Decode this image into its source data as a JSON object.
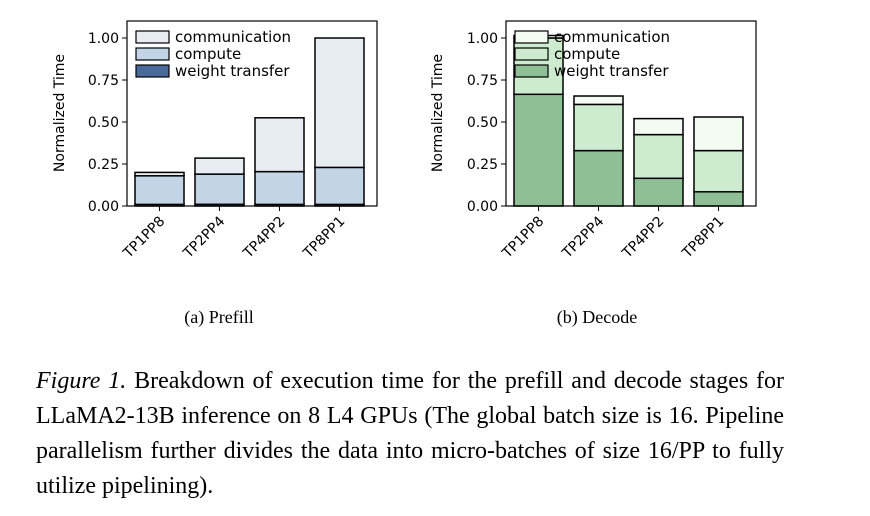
{
  "chart_data": [
    {
      "type": "bar",
      "stacked": true,
      "categories": [
        "TP1PP8",
        "TP2PP4",
        "TP4PP2",
        "TP8PP1"
      ],
      "series": [
        {
          "name": "weight transfer",
          "values": [
            0.01,
            0.01,
            0.01,
            0.01
          ],
          "color": "#4a6a9c"
        },
        {
          "name": "compute",
          "values": [
            0.17,
            0.18,
            0.195,
            0.22
          ],
          "color": "#c2d4e6"
        },
        {
          "name": "communication",
          "values": [
            0.02,
            0.095,
            0.32,
            0.77
          ],
          "color": "#e8edf3"
        }
      ],
      "ylabel": "Normalized Time",
      "ylim": [
        0,
        1.0
      ],
      "yticks": [
        "0.00",
        "0.25",
        "0.50",
        "0.75",
        "1.00"
      ],
      "legend": "top-left",
      "grid": false
    },
    {
      "type": "bar",
      "stacked": true,
      "categories": [
        "TP1PP8",
        "TP2PP4",
        "TP4PP2",
        "TP8PP1"
      ],
      "series": [
        {
          "name": "weight transfer",
          "values": [
            0.665,
            0.33,
            0.165,
            0.085
          ],
          "color": "#8fbf94"
        },
        {
          "name": "compute",
          "values": [
            0.335,
            0.275,
            0.26,
            0.245
          ],
          "color": "#cdeccf"
        },
        {
          "name": "communication",
          "values": [
            0.015,
            0.05,
            0.095,
            0.2
          ],
          "color": "#f3fbf3"
        }
      ],
      "ylabel": "Normalized Time",
      "ylim": [
        0,
        1.0
      ],
      "yticks": [
        "0.00",
        "0.25",
        "0.50",
        "0.75",
        "1.00"
      ],
      "legend": "top-left",
      "grid": false
    }
  ],
  "subcaptions": {
    "a": "(a) Prefill",
    "b": "(b) Decode"
  },
  "caption": {
    "label": "Figure 1.",
    "text": " Breakdown of execution time for the prefill and decode stages for LLaMA2-13B inference on 8 L4 GPUs (The global batch size is 16. Pipeline parallelism further divides the data into micro-batches of size 16/PP to fully utilize pipelining)."
  }
}
